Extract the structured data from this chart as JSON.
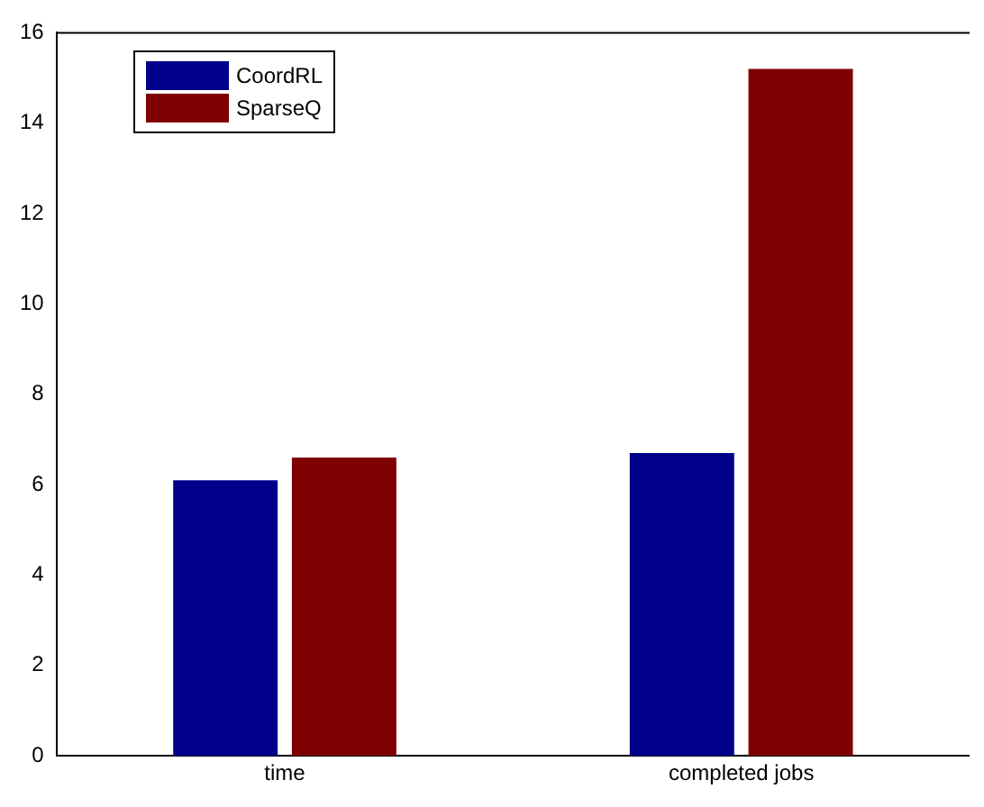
{
  "chart_data": {
    "type": "bar",
    "categories": [
      "time",
      "completed jobs"
    ],
    "series": [
      {
        "name": "CoordRL",
        "color": "#00008b",
        "values": [
          6.1,
          6.7
        ]
      },
      {
        "name": "SparseQ",
        "color": "#7f0000",
        "values": [
          6.6,
          15.2
        ]
      }
    ],
    "ylim": [
      0,
      16
    ],
    "yticks": [
      0,
      2,
      4,
      6,
      8,
      10,
      12,
      14,
      16
    ],
    "legend": "top left"
  }
}
